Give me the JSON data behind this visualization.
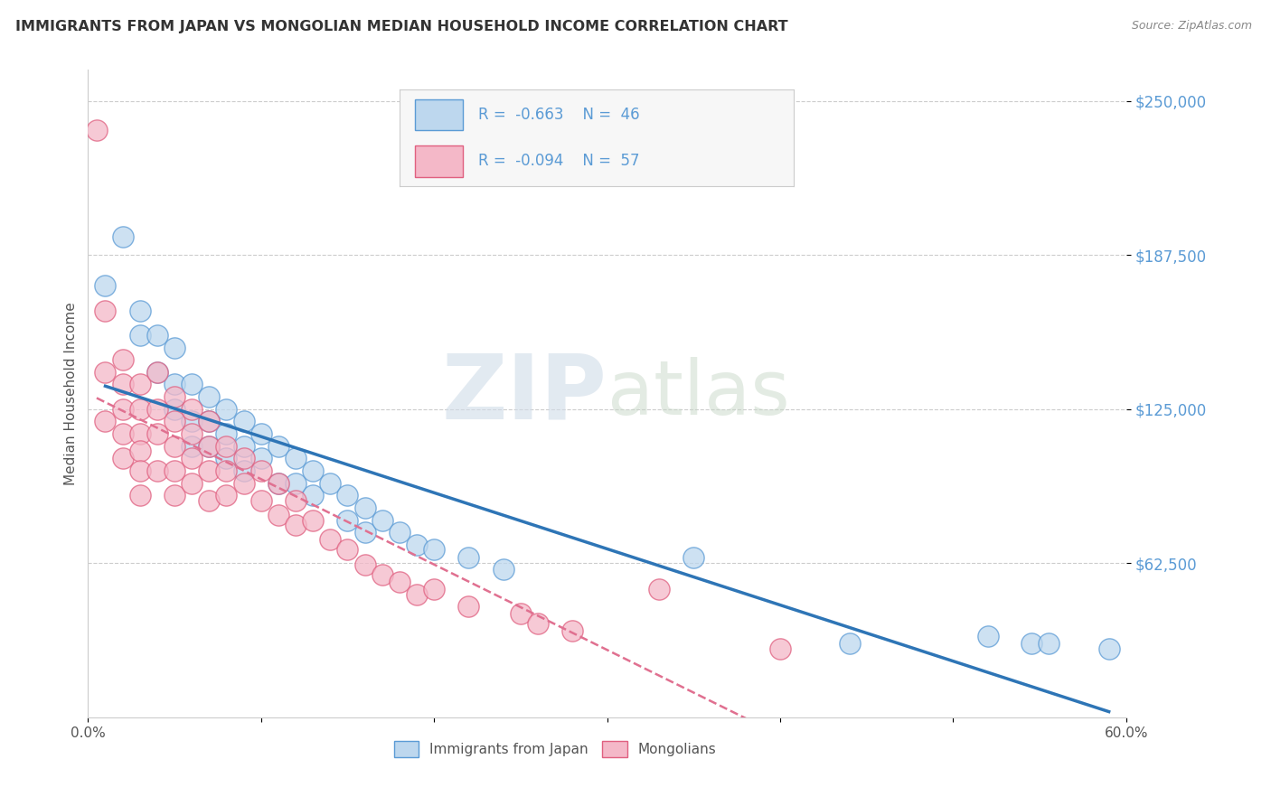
{
  "title": "IMMIGRANTS FROM JAPAN VS MONGOLIAN MEDIAN HOUSEHOLD INCOME CORRELATION CHART",
  "source": "Source: ZipAtlas.com",
  "ylabel": "Median Household Income",
  "xlim": [
    0.0,
    0.6
  ],
  "ylim": [
    0,
    262500
  ],
  "yticks": [
    62500,
    125000,
    187500,
    250000
  ],
  "ytick_labels": [
    "$62,500",
    "$125,000",
    "$187,500",
    "$250,000"
  ],
  "xticks": [
    0.0,
    0.1,
    0.2,
    0.3,
    0.4,
    0.5,
    0.6
  ],
  "xtick_labels": [
    "0.0%",
    "",
    "",
    "",
    "",
    "",
    "60.0%"
  ],
  "legend_r1": "-0.663",
  "legend_n1": "46",
  "legend_r2": "-0.094",
  "legend_n2": "57",
  "watermark_zip": "ZIP",
  "watermark_atlas": "atlas",
  "blue_fill": "#bdd7ee",
  "pink_fill": "#f4b8c8",
  "blue_edge": "#5b9bd5",
  "pink_edge": "#e06080",
  "line_blue_color": "#2e75b6",
  "line_pink_color": "#e07090",
  "japan_scatter_x": [
    0.01,
    0.02,
    0.03,
    0.03,
    0.04,
    0.04,
    0.05,
    0.05,
    0.05,
    0.06,
    0.06,
    0.06,
    0.07,
    0.07,
    0.07,
    0.08,
    0.08,
    0.08,
    0.09,
    0.09,
    0.09,
    0.1,
    0.1,
    0.11,
    0.11,
    0.12,
    0.12,
    0.13,
    0.13,
    0.14,
    0.15,
    0.15,
    0.16,
    0.16,
    0.17,
    0.18,
    0.19,
    0.2,
    0.22,
    0.24,
    0.35,
    0.44,
    0.52,
    0.545,
    0.555,
    0.59
  ],
  "japan_scatter_y": [
    175000,
    195000,
    165000,
    155000,
    155000,
    140000,
    150000,
    135000,
    125000,
    135000,
    120000,
    110000,
    130000,
    120000,
    110000,
    125000,
    115000,
    105000,
    120000,
    110000,
    100000,
    115000,
    105000,
    110000,
    95000,
    105000,
    95000,
    100000,
    90000,
    95000,
    90000,
    80000,
    85000,
    75000,
    80000,
    75000,
    70000,
    68000,
    65000,
    60000,
    65000,
    30000,
    33000,
    30000,
    30000,
    28000
  ],
  "mongol_scatter_x": [
    0.005,
    0.01,
    0.01,
    0.01,
    0.02,
    0.02,
    0.02,
    0.02,
    0.02,
    0.03,
    0.03,
    0.03,
    0.03,
    0.03,
    0.03,
    0.04,
    0.04,
    0.04,
    0.04,
    0.05,
    0.05,
    0.05,
    0.05,
    0.05,
    0.06,
    0.06,
    0.06,
    0.06,
    0.07,
    0.07,
    0.07,
    0.07,
    0.08,
    0.08,
    0.08,
    0.09,
    0.09,
    0.1,
    0.1,
    0.11,
    0.11,
    0.12,
    0.12,
    0.13,
    0.14,
    0.15,
    0.16,
    0.17,
    0.18,
    0.19,
    0.2,
    0.22,
    0.25,
    0.26,
    0.28,
    0.33,
    0.4
  ],
  "mongol_scatter_y": [
    238000,
    165000,
    140000,
    120000,
    145000,
    135000,
    125000,
    115000,
    105000,
    135000,
    125000,
    115000,
    108000,
    100000,
    90000,
    140000,
    125000,
    115000,
    100000,
    130000,
    120000,
    110000,
    100000,
    90000,
    125000,
    115000,
    105000,
    95000,
    120000,
    110000,
    100000,
    88000,
    110000,
    100000,
    90000,
    105000,
    95000,
    100000,
    88000,
    95000,
    82000,
    88000,
    78000,
    80000,
    72000,
    68000,
    62000,
    58000,
    55000,
    50000,
    52000,
    45000,
    42000,
    38000,
    35000,
    52000,
    28000
  ]
}
